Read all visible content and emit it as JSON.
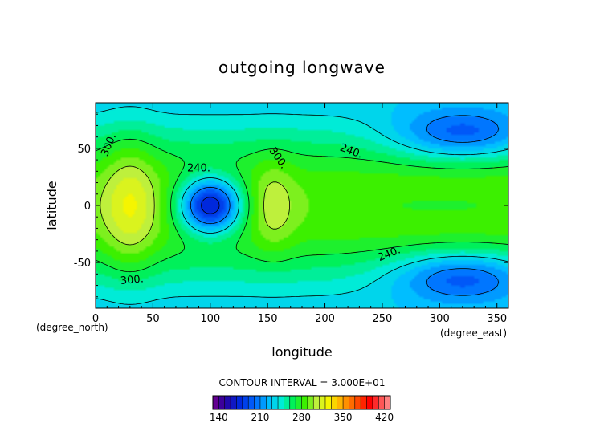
{
  "chart_data": {
    "type": "heatmap",
    "title": "outgoing longwave",
    "xlabel": "longitude",
    "ylabel": "latitude",
    "x_unit": "(degree_east)",
    "y_unit": "(degree_north)",
    "xlim": [
      0,
      360
    ],
    "ylim": [
      -90,
      90
    ],
    "x_ticks": [
      0,
      50,
      100,
      150,
      200,
      250,
      300,
      350
    ],
    "y_ticks": [
      -50,
      0,
      50
    ],
    "contour_interval_text": "CONTOUR INTERVAL = 3.000E+01",
    "contour_labels": [
      "300.",
      "240.",
      "300.",
      "240.",
      "240.",
      "300."
    ],
    "colorbar": {
      "min": 130,
      "max": 430,
      "tick_values": [
        140,
        210,
        280,
        350,
        420
      ]
    },
    "features": [
      {
        "kind": "low",
        "lon": 100,
        "lat": 0,
        "value": 160
      },
      {
        "kind": "low",
        "lon": 310,
        "lat": 62,
        "value": 195
      },
      {
        "kind": "low",
        "lon": 310,
        "lat": -62,
        "value": 195
      },
      {
        "kind": "high",
        "lon": 25,
        "lat": 0,
        "value": 315
      },
      {
        "kind": "high",
        "lon": 155,
        "lat": 0,
        "value": 300
      }
    ]
  }
}
